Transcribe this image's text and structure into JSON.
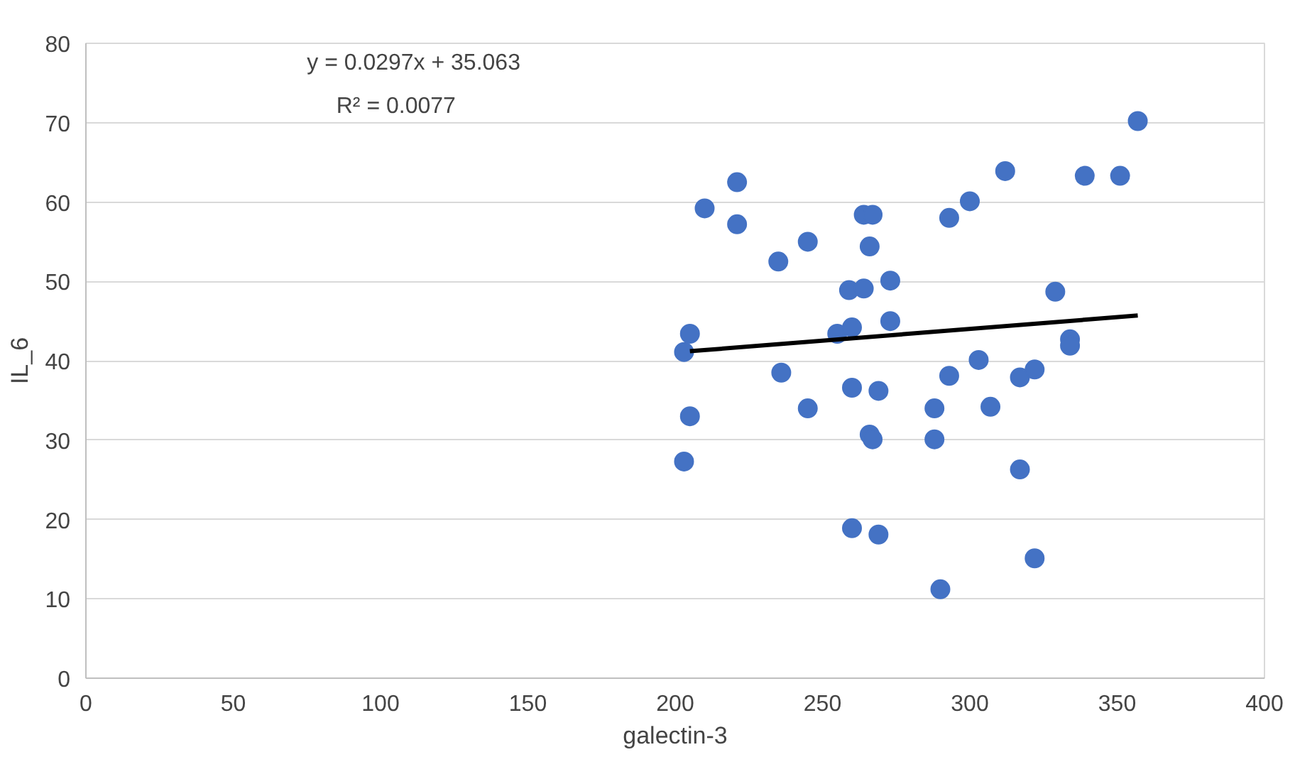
{
  "chart_data": {
    "type": "scatter",
    "xlabel": "galectin-3",
    "ylabel": "IL_6",
    "xlim": [
      0,
      400
    ],
    "ylim": [
      0,
      80
    ],
    "xticks": [
      0,
      50,
      100,
      150,
      200,
      250,
      300,
      350,
      400
    ],
    "yticks": [
      0,
      10,
      20,
      30,
      40,
      50,
      60,
      70,
      80
    ],
    "grid": "y",
    "annotations": [
      "y = 0.0297x + 35.063",
      "R² = 0.0077"
    ],
    "series": [
      {
        "marker": "circle",
        "color": "#4472c4",
        "x": [
          203,
          205,
          203,
          205,
          210,
          221,
          221,
          235,
          236,
          245,
          245,
          255,
          259,
          260,
          260,
          260,
          264,
          267,
          266,
          264,
          266,
          267,
          269,
          269,
          273,
          273,
          288,
          288,
          290,
          293,
          293,
          300,
          303,
          307,
          312,
          317,
          317,
          322,
          322,
          329,
          334,
          334,
          339,
          351,
          357
        ],
        "values": [
          27.3,
          33.0,
          41.1,
          43.4,
          59.2,
          62.5,
          57.2,
          52.5,
          38.5,
          55.0,
          34.0,
          43.4,
          48.9,
          44.2,
          36.6,
          18.9,
          58.4,
          58.4,
          54.4,
          49.1,
          30.7,
          30.1,
          36.2,
          18.1,
          50.1,
          45.0,
          34.0,
          30.1,
          11.2,
          58.0,
          38.1,
          60.1,
          40.1,
          34.2,
          63.9,
          26.3,
          37.9,
          38.9,
          15.1,
          48.7,
          42.7,
          41.9,
          63.3,
          63.3,
          70.2
        ]
      },
      {
        "type": "line",
        "color": "#000000",
        "x": [
          205,
          357
        ],
        "values": [
          41.2,
          45.7
        ]
      }
    ]
  }
}
